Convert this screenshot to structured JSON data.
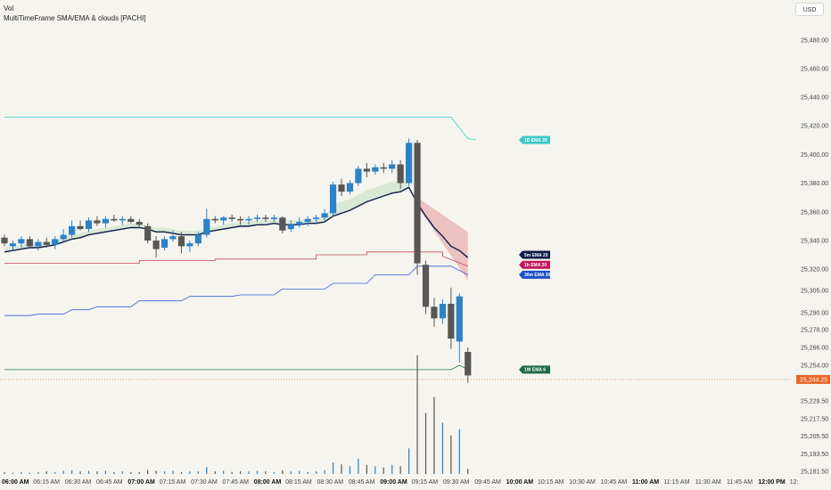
{
  "header": {
    "volume_label": "Vol",
    "indicator_title": "MultiTimeFrame SMA/EMA & clouds [PACHI]"
  },
  "currency_button": "USD",
  "colors": {
    "background": "#f6f4ef",
    "candle_up": "#2a82c8",
    "candle_down": "#595755",
    "ema_5m": "#0d1b4a",
    "ema_1h": "#c24b5a",
    "ema_30m": "#3a62d8",
    "ema_1D": "#3cc8c8",
    "ema_1W": "#1f7a52",
    "cloud_green": "#d8e7d2",
    "cloud_red": "#e9b9b9",
    "last_price": "#e8662a"
  },
  "chart_data": {
    "type": "candlestick",
    "price_axis_ticks": [
      "25,480.00",
      "25,460.00",
      "25,440.00",
      "25,420.00",
      "25,400.00",
      "25,380.00",
      "25,360.00",
      "25,340.00",
      "25,320.00",
      "25,305.00",
      "25,290.00",
      "25,278.00",
      "25,266.00",
      "25,254.00",
      "25,229.50",
      "25,217.50",
      "25,205.50",
      "25,193.50",
      "25,181.50"
    ],
    "time_axis_ticks": [
      {
        "label": "06:00 AM",
        "bold": true
      },
      {
        "label": "06:15 AM",
        "bold": false
      },
      {
        "label": "06:30 AM",
        "bold": false
      },
      {
        "label": "06:45 AM",
        "bold": false
      },
      {
        "label": "07:00 AM",
        "bold": true
      },
      {
        "label": "07:15 AM",
        "bold": false
      },
      {
        "label": "07:30 AM",
        "bold": false
      },
      {
        "label": "07:45 AM",
        "bold": false
      },
      {
        "label": "08:00 AM",
        "bold": true
      },
      {
        "label": "08:15 AM",
        "bold": false
      },
      {
        "label": "08:30 AM",
        "bold": false
      },
      {
        "label": "08:45 AM",
        "bold": false
      },
      {
        "label": "09:00 AM",
        "bold": true
      },
      {
        "label": "09:15 AM",
        "bold": false
      },
      {
        "label": "09:30 AM",
        "bold": false
      },
      {
        "label": "09:45 AM",
        "bold": false
      },
      {
        "label": "10:00 AM",
        "bold": true
      },
      {
        "label": "10:15 AM",
        "bold": false
      },
      {
        "label": "10:30 AM",
        "bold": false
      },
      {
        "label": "10:45 AM",
        "bold": false
      },
      {
        "label": "11:00 AM",
        "bold": true
      },
      {
        "label": "11:15 AM",
        "bold": false
      },
      {
        "label": "11:30 AM",
        "bold": false
      },
      {
        "label": "11:45 AM",
        "bold": false
      },
      {
        "label": "12:00 PM",
        "bold": true
      },
      {
        "label": "12:",
        "bold": false
      }
    ],
    "candles": [
      {
        "o": 25342,
        "h": 25344,
        "l": 25336,
        "c": 25338
      },
      {
        "o": 25336,
        "h": 25340,
        "l": 25333,
        "c": 25338
      },
      {
        "o": 25338,
        "h": 25343,
        "l": 25335,
        "c": 25341
      },
      {
        "o": 25341,
        "h": 25343,
        "l": 25335,
        "c": 25336
      },
      {
        "o": 25336,
        "h": 25341,
        "l": 25333,
        "c": 25339
      },
      {
        "o": 25339,
        "h": 25342,
        "l": 25335,
        "c": 25337
      },
      {
        "o": 25337,
        "h": 25343,
        "l": 25334,
        "c": 25341
      },
      {
        "o": 25341,
        "h": 25348,
        "l": 25339,
        "c": 25344
      },
      {
        "o": 25344,
        "h": 25354,
        "l": 25342,
        "c": 25350
      },
      {
        "o": 25350,
        "h": 25354,
        "l": 25347,
        "c": 25348
      },
      {
        "o": 25348,
        "h": 25356,
        "l": 25346,
        "c": 25354
      },
      {
        "o": 25354,
        "h": 25357,
        "l": 25350,
        "c": 25352
      },
      {
        "o": 25352,
        "h": 25357,
        "l": 25349,
        "c": 25355
      },
      {
        "o": 25355,
        "h": 25358,
        "l": 25353,
        "c": 25354
      },
      {
        "o": 25354,
        "h": 25357,
        "l": 25351,
        "c": 25355
      },
      {
        "o": 25355,
        "h": 25357,
        "l": 25352,
        "c": 25353
      },
      {
        "o": 25353,
        "h": 25355,
        "l": 25349,
        "c": 25351
      },
      {
        "o": 25350,
        "h": 25352,
        "l": 25338,
        "c": 25340
      },
      {
        "o": 25340,
        "h": 25343,
        "l": 25328,
        "c": 25334
      },
      {
        "o": 25335,
        "h": 25343,
        "l": 25333,
        "c": 25341
      },
      {
        "o": 25341,
        "h": 25347,
        "l": 25339,
        "c": 25343
      },
      {
        "o": 25343,
        "h": 25346,
        "l": 25331,
        "c": 25336
      },
      {
        "o": 25336,
        "h": 25340,
        "l": 25332,
        "c": 25338
      },
      {
        "o": 25338,
        "h": 25346,
        "l": 25336,
        "c": 25344
      },
      {
        "o": 25344,
        "h": 25362,
        "l": 25342,
        "c": 25355
      },
      {
        "o": 25355,
        "h": 25357,
        "l": 25352,
        "c": 25354
      },
      {
        "o": 25354,
        "h": 25357,
        "l": 25351,
        "c": 25356
      },
      {
        "o": 25356,
        "h": 25358,
        "l": 25353,
        "c": 25355
      },
      {
        "o": 25355,
        "h": 25357,
        "l": 25351,
        "c": 25354
      },
      {
        "o": 25354,
        "h": 25357,
        "l": 25351,
        "c": 25355
      },
      {
        "o": 25355,
        "h": 25358,
        "l": 25353,
        "c": 25356
      },
      {
        "o": 25356,
        "h": 25358,
        "l": 25353,
        "c": 25355
      },
      {
        "o": 25355,
        "h": 25358,
        "l": 25353,
        "c": 25356
      },
      {
        "o": 25356,
        "h": 25357,
        "l": 25345,
        "c": 25347
      },
      {
        "o": 25348,
        "h": 25354,
        "l": 25346,
        "c": 25351
      },
      {
        "o": 25351,
        "h": 25356,
        "l": 25349,
        "c": 25353
      },
      {
        "o": 25353,
        "h": 25357,
        "l": 25350,
        "c": 25355
      },
      {
        "o": 25355,
        "h": 25358,
        "l": 25352,
        "c": 25356
      },
      {
        "o": 25356,
        "h": 25362,
        "l": 25354,
        "c": 25359
      },
      {
        "o": 25359,
        "h": 25381,
        "l": 25357,
        "c": 25379
      },
      {
        "o": 25379,
        "h": 25383,
        "l": 25371,
        "c": 25374
      },
      {
        "o": 25374,
        "h": 25382,
        "l": 25372,
        "c": 25380
      },
      {
        "o": 25380,
        "h": 25392,
        "l": 25378,
        "c": 25390
      },
      {
        "o": 25390,
        "h": 25394,
        "l": 25384,
        "c": 25388
      },
      {
        "o": 25388,
        "h": 25393,
        "l": 25386,
        "c": 25391
      },
      {
        "o": 25391,
        "h": 25394,
        "l": 25387,
        "c": 25390
      },
      {
        "o": 25390,
        "h": 25396,
        "l": 25387,
        "c": 25393
      },
      {
        "o": 25393,
        "h": 25396,
        "l": 25376,
        "c": 25380
      },
      {
        "o": 25380,
        "h": 25411,
        "l": 25378,
        "c": 25408
      },
      {
        "o": 25408,
        "h": 25410,
        "l": 25316,
        "c": 25324
      },
      {
        "o": 25323,
        "h": 25326,
        "l": 25289,
        "c": 25294
      },
      {
        "o": 25294,
        "h": 25300,
        "l": 25280,
        "c": 25286
      },
      {
        "o": 25286,
        "h": 25299,
        "l": 25282,
        "c": 25296
      },
      {
        "o": 25296,
        "h": 25307,
        "l": 25265,
        "c": 25272
      },
      {
        "o": 25270,
        "h": 25303,
        "l": 25256,
        "c": 25301
      },
      {
        "o": 25263,
        "h": 25266,
        "l": 25242,
        "c": 25247
      }
    ],
    "volume": [
      3,
      2,
      3,
      2,
      3,
      4,
      3,
      5,
      6,
      4,
      5,
      4,
      5,
      3,
      4,
      3,
      3,
      6,
      5,
      4,
      5,
      3,
      4,
      4,
      11,
      4,
      5,
      3,
      4,
      4,
      5,
      4,
      3,
      6,
      4,
      5,
      3,
      4,
      6,
      18,
      15,
      12,
      24,
      14,
      12,
      10,
      14,
      12,
      40,
      185,
      95,
      120,
      80,
      60,
      70,
      8
    ],
    "ema_5m": [
      25332,
      25333,
      25334,
      25335,
      25335,
      25336,
      25337,
      25339,
      25341,
      25342,
      25344,
      25345,
      25346,
      25347,
      25348,
      25349,
      25349,
      25348,
      25346,
      25346,
      25345,
      25344,
      25344,
      25344,
      25346,
      25347,
      25348,
      25349,
      25350,
      25350,
      25351,
      25351,
      25352,
      25351,
      25351,
      25351,
      25352,
      25352,
      25353,
      25357,
      25359,
      25361,
      25364,
      25367,
      25369,
      25371,
      25373,
      25374,
      25377,
      25366,
      25357,
      25349,
      25343,
      25336,
      25333,
      25328
    ],
    "cloud_green": {
      "start_index": 0,
      "end_index": 48,
      "lower_offset": 6
    },
    "cloud_red": [
      {
        "i": 49,
        "top": 25370,
        "bottom": 25364
      },
      {
        "i": 55,
        "top": 25346,
        "bottom": 25312
      }
    ],
    "ema_1h": [
      {
        "i": 0,
        "v": 25324
      },
      {
        "i": 16,
        "v": 25324
      },
      {
        "i": 16,
        "v": 25326
      },
      {
        "i": 25,
        "v": 25326
      },
      {
        "i": 25,
        "v": 25327
      },
      {
        "i": 37,
        "v": 25327
      },
      {
        "i": 37,
        "v": 25330
      },
      {
        "i": 43,
        "v": 25330
      },
      {
        "i": 43,
        "v": 25332
      },
      {
        "i": 52,
        "v": 25332
      },
      {
        "i": 52,
        "v": 25329
      },
      {
        "i": 55,
        "v": 25322
      }
    ],
    "ema_30m": [
      {
        "i": 0,
        "v": 25288
      },
      {
        "i": 3,
        "v": 25288
      },
      {
        "i": 4,
        "v": 25289
      },
      {
        "i": 7,
        "v": 25289
      },
      {
        "i": 8,
        "v": 25292
      },
      {
        "i": 10,
        "v": 25292
      },
      {
        "i": 11,
        "v": 25294
      },
      {
        "i": 15,
        "v": 25294
      },
      {
        "i": 16,
        "v": 25298
      },
      {
        "i": 21,
        "v": 25298
      },
      {
        "i": 22,
        "v": 25301
      },
      {
        "i": 27,
        "v": 25301
      },
      {
        "i": 28,
        "v": 25302
      },
      {
        "i": 32,
        "v": 25302
      },
      {
        "i": 33,
        "v": 25306
      },
      {
        "i": 38,
        "v": 25306
      },
      {
        "i": 39,
        "v": 25310
      },
      {
        "i": 43,
        "v": 25310
      },
      {
        "i": 44,
        "v": 25316
      },
      {
        "i": 48,
        "v": 25316
      },
      {
        "i": 49,
        "v": 25322
      },
      {
        "i": 53,
        "v": 25322
      },
      {
        "i": 55,
        "v": 25316
      }
    ],
    "ema_1D": [
      {
        "i": 0,
        "v": 25426
      },
      {
        "i": 53,
        "v": 25426
      },
      {
        "i": 55,
        "v": 25411
      },
      {
        "i": 56,
        "v": 25410
      }
    ],
    "ema_1W": [
      {
        "i": 0,
        "v": 25251
      },
      {
        "i": 53,
        "v": 25251
      },
      {
        "i": 54,
        "v": 25254
      },
      {
        "i": 55,
        "v": 25251
      }
    ],
    "line_tags": [
      {
        "label": "1D EMA 20",
        "price": 25410,
        "color": "#3cc8c8"
      },
      {
        "label": "5m EMA 20",
        "price": 25330,
        "color": "#0d1b4a"
      },
      {
        "label": "1h EMA 20",
        "price": 25323,
        "color": "#c2185b"
      },
      {
        "label": "30m EMA 20",
        "price": 25316,
        "color": "#1e4fc8"
      },
      {
        "label": "1W EMA 6",
        "price": 25251,
        "color": "#1f6b46"
      }
    ],
    "last_price": {
      "value": 25244.25,
      "label": "25,244.25"
    }
  }
}
